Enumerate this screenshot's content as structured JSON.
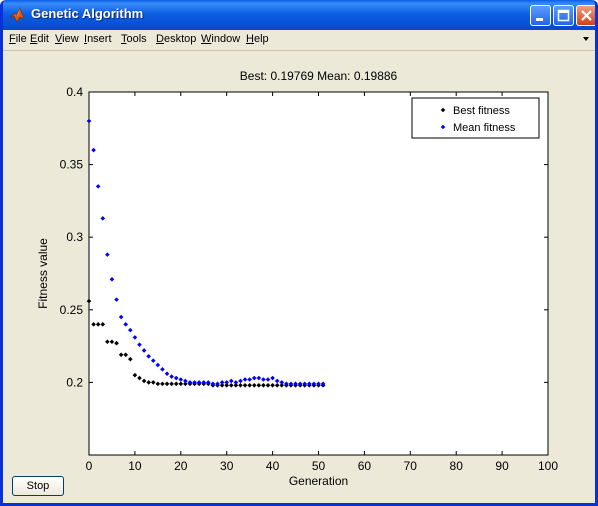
{
  "window": {
    "title": "Genetic Algorithm"
  },
  "menu": [
    "File",
    "Edit",
    "View",
    "Insert",
    "Tools",
    "Desktop",
    "Window",
    "Help"
  ],
  "controls": {
    "stop_label": "Stop"
  },
  "colors": {
    "best": "#000000",
    "mean": "#0000ff",
    "titlebar": "#0a56de"
  },
  "chart_data": {
    "type": "scatter",
    "title": "Best: 0.19769 Mean: 0.19886",
    "xlabel": "Generation",
    "ylabel": "Fitness value",
    "xlim": [
      0,
      100
    ],
    "ylim": [
      0.15,
      0.4
    ],
    "xticks": [
      0,
      10,
      20,
      30,
      40,
      50,
      60,
      70,
      80,
      90,
      100
    ],
    "yticks": [
      0.2,
      0.25,
      0.3,
      0.35,
      0.4
    ],
    "legend_position": "top-right",
    "series": [
      {
        "name": "Best fitness",
        "x": [
          0,
          1,
          2,
          3,
          4,
          5,
          6,
          7,
          8,
          9,
          10,
          11,
          12,
          13,
          14,
          15,
          16,
          17,
          18,
          19,
          20,
          21,
          22,
          23,
          24,
          25,
          26,
          27,
          28,
          29,
          30,
          31,
          32,
          33,
          34,
          35,
          36,
          37,
          38,
          39,
          40,
          41,
          42,
          43,
          44,
          45,
          46,
          47,
          48,
          49,
          50,
          51
        ],
        "y": [
          0.256,
          0.24,
          0.24,
          0.24,
          0.228,
          0.228,
          0.227,
          0.219,
          0.219,
          0.216,
          0.205,
          0.203,
          0.201,
          0.2,
          0.2,
          0.199,
          0.199,
          0.199,
          0.199,
          0.199,
          0.199,
          0.199,
          0.199,
          0.199,
          0.199,
          0.199,
          0.199,
          0.198,
          0.198,
          0.198,
          0.198,
          0.198,
          0.198,
          0.198,
          0.198,
          0.198,
          0.198,
          0.198,
          0.198,
          0.198,
          0.198,
          0.198,
          0.198,
          0.198,
          0.198,
          0.198,
          0.198,
          0.198,
          0.198,
          0.198,
          0.198,
          0.198
        ]
      },
      {
        "name": "Mean fitness",
        "x": [
          0,
          1,
          2,
          3,
          4,
          5,
          6,
          7,
          8,
          9,
          10,
          11,
          12,
          13,
          14,
          15,
          16,
          17,
          18,
          19,
          20,
          21,
          22,
          23,
          24,
          25,
          26,
          27,
          28,
          29,
          30,
          31,
          32,
          33,
          34,
          35,
          36,
          37,
          38,
          39,
          40,
          41,
          42,
          43,
          44,
          45,
          46,
          47,
          48,
          49,
          50,
          51
        ],
        "y": [
          0.38,
          0.36,
          0.335,
          0.313,
          0.288,
          0.271,
          0.257,
          0.245,
          0.24,
          0.236,
          0.231,
          0.226,
          0.222,
          0.218,
          0.215,
          0.212,
          0.209,
          0.206,
          0.204,
          0.203,
          0.202,
          0.201,
          0.2,
          0.2,
          0.2,
          0.2,
          0.2,
          0.199,
          0.199,
          0.2,
          0.2,
          0.201,
          0.2,
          0.201,
          0.202,
          0.202,
          0.203,
          0.203,
          0.202,
          0.202,
          0.203,
          0.201,
          0.2,
          0.199,
          0.199,
          0.199,
          0.199,
          0.199,
          0.199,
          0.199,
          0.199,
          0.199
        ]
      }
    ]
  }
}
